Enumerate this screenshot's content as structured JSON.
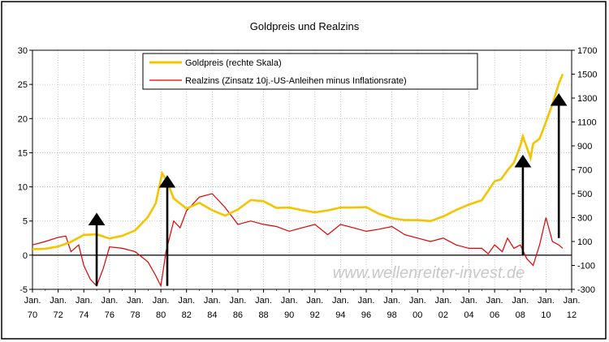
{
  "chart_data": {
    "type": "line",
    "title": "Goldpreis und Realzins",
    "watermark": "www.wellenreiter-invest.de",
    "legend_placement": "top",
    "grid": true,
    "left_axis": {
      "ylim": [
        -5,
        30
      ],
      "ticks": [
        "30",
        "25",
        "20",
        "15",
        "10",
        "5",
        "0",
        "-5"
      ],
      "tick_values": [
        30,
        25,
        20,
        15,
        10,
        5,
        0,
        -5
      ]
    },
    "right_axis": {
      "ylim": [
        -300,
        1700
      ],
      "ticks": [
        "1700",
        "1500",
        "1300",
        "1100",
        "900",
        "700",
        "500",
        "300",
        "100",
        "-100",
        "-300"
      ],
      "tick_values": [
        1700,
        1500,
        1300,
        1100,
        900,
        700,
        500,
        300,
        100,
        -100,
        -300
      ]
    },
    "x_axis": {
      "xlim": [
        1970,
        2012
      ],
      "month_label": "Jan.",
      "ticks": [
        {
          "year": 1970,
          "label": "70"
        },
        {
          "year": 1972,
          "label": "72"
        },
        {
          "year": 1974,
          "label": "74"
        },
        {
          "year": 1976,
          "label": "76"
        },
        {
          "year": 1978,
          "label": "78"
        },
        {
          "year": 1980,
          "label": "80"
        },
        {
          "year": 1982,
          "label": "82"
        },
        {
          "year": 1984,
          "label": "84"
        },
        {
          "year": 1986,
          "label": "86"
        },
        {
          "year": 1988,
          "label": "88"
        },
        {
          "year": 1990,
          "label": "90"
        },
        {
          "year": 1992,
          "label": "92"
        },
        {
          "year": 1994,
          "label": "94"
        },
        {
          "year": 1996,
          "label": "96"
        },
        {
          "year": 1998,
          "label": "98"
        },
        {
          "year": 2000,
          "label": "00"
        },
        {
          "year": 2002,
          "label": "02"
        },
        {
          "year": 2004,
          "label": "04"
        },
        {
          "year": 2006,
          "label": "06"
        },
        {
          "year": 2008,
          "label": "08"
        },
        {
          "year": 2010,
          "label": "10"
        },
        {
          "year": 2012,
          "label": "12"
        }
      ]
    },
    "series": [
      {
        "name": "Goldpreis (rechte Skala)",
        "axis": "right",
        "color": "#f5c400",
        "x": [
          1970,
          1971,
          1972,
          1973,
          1974,
          1975,
          1976,
          1977,
          1978,
          1979,
          1979.6,
          1980,
          1980.1,
          1980.5,
          1981,
          1982,
          1983,
          1984,
          1985,
          1986,
          1987,
          1988,
          1989,
          1990,
          1991,
          1992,
          1993,
          1994,
          1995,
          1996,
          1997,
          1998,
          1999,
          2000,
          2001,
          2002,
          2003,
          2004,
          2005,
          2006,
          2006.5,
          2007,
          2007.5,
          2008,
          2008.2,
          2008.8,
          2009,
          2009.5,
          2010,
          2010.5,
          2011,
          2011.3
        ],
        "y": [
          36,
          40,
          58,
          97,
          155,
          160,
          125,
          148,
          193,
          306,
          420,
          620,
          670,
          600,
          460,
          375,
          424,
          361,
          317,
          368,
          447,
          437,
          381,
          384,
          362,
          344,
          360,
          384,
          384,
          388,
          331,
          294,
          279,
          279,
          271,
          310,
          363,
          409,
          445,
          604,
          620,
          696,
          760,
          900,
          980,
          800,
          920,
          960,
          1100,
          1250,
          1420,
          1500
        ]
      },
      {
        "name": "Realzins (Zinsatz 10j.-US-Anleihen minus Inflationsrate)",
        "axis": "left",
        "color": "#e00000",
        "x": [
          1970,
          1971,
          1972,
          1972.6,
          1973,
          1973.6,
          1974,
          1974.5,
          1975,
          1975.5,
          1976,
          1977,
          1978,
          1979,
          1979.6,
          1980,
          1980.4,
          1981,
          1981.5,
          1982,
          1983,
          1984,
          1984.5,
          1985,
          1986,
          1987,
          1988,
          1989,
          1990,
          1991,
          1992,
          1993,
          1994,
          1995,
          1996,
          1997,
          1998,
          1999,
          2000,
          2001,
          2002,
          2003,
          2004,
          2005,
          2005.5,
          2006,
          2006.6,
          2007,
          2007.5,
          2008,
          2008.5,
          2009,
          2009.5,
          2010,
          2010.5,
          2011,
          2011.3
        ],
        "y": [
          1.5,
          2.0,
          2.6,
          2.8,
          0.5,
          1.5,
          -1.5,
          -3.5,
          -4.5,
          -2.0,
          1.2,
          1.0,
          0.5,
          -1.0,
          -3.0,
          -4.5,
          0.5,
          5.0,
          4.0,
          6.5,
          8.5,
          9.0,
          8.0,
          7.0,
          4.5,
          5.0,
          4.5,
          4.2,
          3.5,
          4.0,
          4.5,
          3.0,
          4.5,
          4.0,
          3.5,
          3.8,
          4.2,
          3.0,
          2.5,
          2.0,
          2.5,
          1.5,
          1.0,
          1.0,
          0.2,
          1.5,
          0.5,
          2.5,
          1.0,
          1.5,
          -0.5,
          -1.5,
          1.5,
          5.5,
          2.0,
          1.5,
          1.0
        ]
      }
    ],
    "annotations": [
      {
        "type": "arrow",
        "x": 1975,
        "y_from": -4.5,
        "y_to": 6.0
      },
      {
        "type": "arrow",
        "x": 1980.5,
        "y_from": -4.5,
        "y_to": 11.5
      },
      {
        "type": "arrow",
        "x": 2008.2,
        "y_from": 0,
        "y_to": 14.5
      },
      {
        "type": "arrow",
        "x": 2011,
        "y_from": 2.5,
        "y_to": 23.5
      }
    ]
  }
}
